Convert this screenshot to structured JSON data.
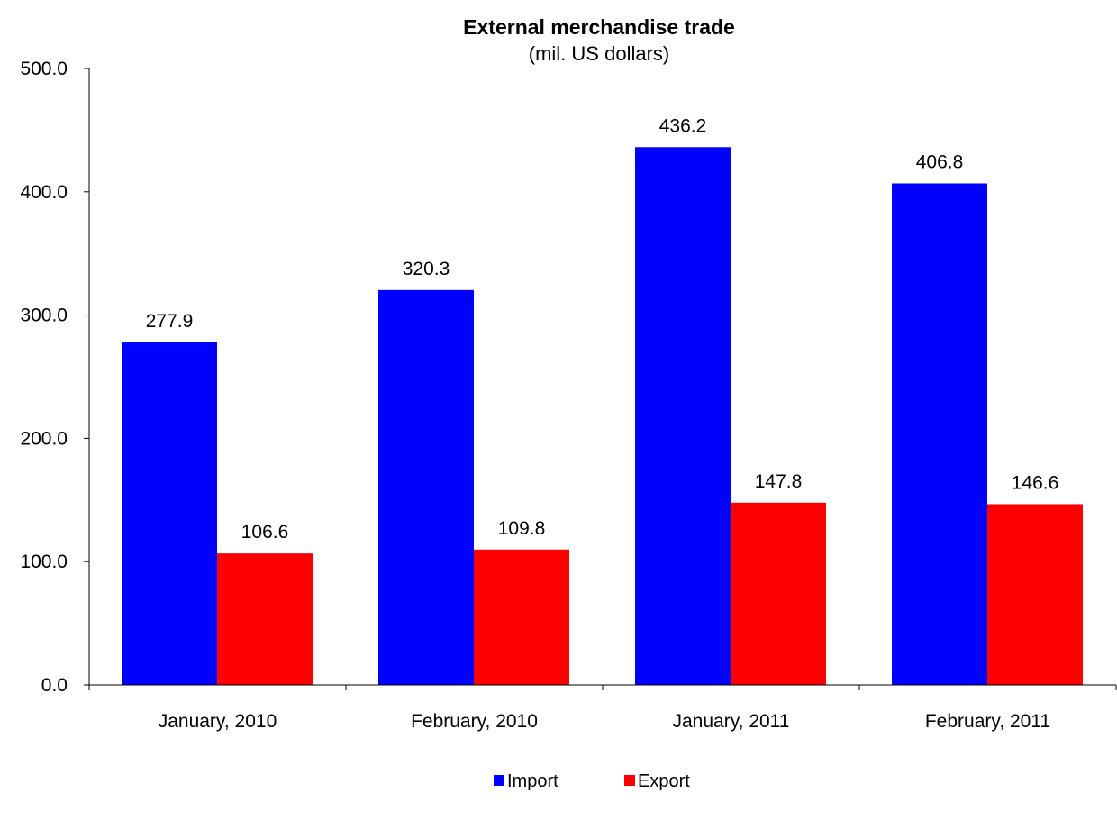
{
  "chart_data": {
    "type": "bar",
    "title": "External merchandise trade",
    "subtitle": "(mil. US dollars)",
    "xlabel": "",
    "ylabel": "",
    "categories": [
      "January, 2010",
      "February, 2010",
      "January, 2011",
      "February, 2011"
    ],
    "series": [
      {
        "name": "Import",
        "color": "#0000FF",
        "values": [
          277.9,
          320.3,
          436.2,
          406.8
        ]
      },
      {
        "name": "Export",
        "color": "#FF0000",
        "values": [
          106.6,
          109.8,
          147.8,
          146.6
        ]
      }
    ],
    "ylim": [
      0,
      500
    ],
    "yticks": [
      "0.0",
      "100.0",
      "200.0",
      "300.0",
      "400.0",
      "500.0"
    ],
    "data_labels": [
      [
        "277.9",
        "320.3",
        "436.2",
        "406.8"
      ],
      [
        "106.6",
        "109.8",
        "147.8",
        "146.6"
      ]
    ],
    "grid": false,
    "legend_position": "bottom"
  }
}
